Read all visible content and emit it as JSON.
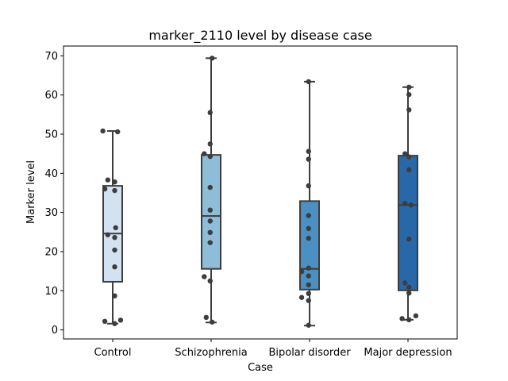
{
  "chart_data": {
    "type": "box",
    "title": "marker_2110 level by disease case",
    "xlabel": "Case",
    "ylabel": "Marker level",
    "ylim": [
      -2.3,
      72.5
    ],
    "yticks": [
      0,
      10,
      20,
      30,
      40,
      50,
      60,
      70
    ],
    "grid": false,
    "legend": "none",
    "categories": [
      "Control",
      "Schizophrenia",
      "Bipolar disorder",
      "Major depression"
    ],
    "colors": [
      "#d3e2f1",
      "#8ebdda",
      "#4a90c2",
      "#2868a8"
    ],
    "edge_color": "#3d3d3d",
    "point_color": "#3d3d3d",
    "boxes": [
      {
        "category": "Control",
        "min": 1.6,
        "q1": 12.3,
        "median": 24.6,
        "q3": 36.8,
        "max": 50.8
      },
      {
        "category": "Schizophrenia",
        "min": 1.9,
        "q1": 15.6,
        "median": 29.1,
        "q3": 44.7,
        "max": 69.4
      },
      {
        "category": "Bipolar disorder",
        "min": 1.1,
        "q1": 10.3,
        "median": 15.6,
        "q3": 32.9,
        "max": 63.4
      },
      {
        "category": "Major depression",
        "min": 2.6,
        "q1": 10.1,
        "median": 31.9,
        "q3": 44.5,
        "max": 62.0
      }
    ],
    "points": [
      [
        {
          "dx": -0.1,
          "y": 50.8
        },
        {
          "dx": 0.05,
          "y": 50.6
        },
        {
          "dx": -0.05,
          "y": 38.3
        },
        {
          "dx": -0.08,
          "y": 36.0
        },
        {
          "dx": 0.02,
          "y": 37.8
        },
        {
          "dx": 0.02,
          "y": 35.6
        },
        {
          "dx": 0.03,
          "y": 26.1
        },
        {
          "dx": -0.05,
          "y": 24.3
        },
        {
          "dx": 0.02,
          "y": 23.6
        },
        {
          "dx": 0.02,
          "y": 20.4
        },
        {
          "dx": 0.02,
          "y": 16.1
        },
        {
          "dx": 0.02,
          "y": 8.7
        },
        {
          "dx": -0.08,
          "y": 2.2
        },
        {
          "dx": 0.08,
          "y": 2.5
        },
        {
          "dx": 0.02,
          "y": 1.6
        }
      ],
      [
        {
          "dx": 0.01,
          "y": 69.4
        },
        {
          "dx": -0.01,
          "y": 55.5
        },
        {
          "dx": -0.01,
          "y": 47.5
        },
        {
          "dx": -0.07,
          "y": 45.0
        },
        {
          "dx": -0.01,
          "y": 44.3
        },
        {
          "dx": -0.01,
          "y": 36.4
        },
        {
          "dx": -0.01,
          "y": 30.6
        },
        {
          "dx": -0.01,
          "y": 27.8
        },
        {
          "dx": -0.01,
          "y": 24.9
        },
        {
          "dx": -0.01,
          "y": 22.3
        },
        {
          "dx": -0.07,
          "y": 13.6
        },
        {
          "dx": -0.01,
          "y": 12.5
        },
        {
          "dx": -0.05,
          "y": 3.2
        },
        {
          "dx": 0.01,
          "y": 2.0
        }
      ],
      [
        {
          "dx": -0.01,
          "y": 63.4
        },
        {
          "dx": -0.01,
          "y": 45.6
        },
        {
          "dx": -0.01,
          "y": 43.6
        },
        {
          "dx": -0.01,
          "y": 36.8
        },
        {
          "dx": -0.01,
          "y": 29.2
        },
        {
          "dx": -0.01,
          "y": 25.9
        },
        {
          "dx": -0.01,
          "y": 23.4
        },
        {
          "dx": -0.01,
          "y": 15.8
        },
        {
          "dx": -0.08,
          "y": 14.9
        },
        {
          "dx": -0.01,
          "y": 13.8
        },
        {
          "dx": -0.01,
          "y": 11.5
        },
        {
          "dx": -0.01,
          "y": 9.3
        },
        {
          "dx": -0.08,
          "y": 8.3
        },
        {
          "dx": -0.01,
          "y": 7.5
        },
        {
          "dx": -0.01,
          "y": 1.2
        }
      ],
      [
        {
          "dx": 0.01,
          "y": 62.0
        },
        {
          "dx": 0.01,
          "y": 60.1
        },
        {
          "dx": 0.01,
          "y": 56.2
        },
        {
          "dx": -0.03,
          "y": 45.0
        },
        {
          "dx": 0.01,
          "y": 44.2
        },
        {
          "dx": 0.01,
          "y": 40.9
        },
        {
          "dx": -0.03,
          "y": 32.3
        },
        {
          "dx": 0.03,
          "y": 31.9
        },
        {
          "dx": 0.01,
          "y": 23.2
        },
        {
          "dx": -0.03,
          "y": 12.0
        },
        {
          "dx": 0.01,
          "y": 10.9
        },
        {
          "dx": 0.01,
          "y": 9.4
        },
        {
          "dx": 0.08,
          "y": 3.6
        },
        {
          "dx": -0.06,
          "y": 2.9
        },
        {
          "dx": 0.01,
          "y": 2.6
        }
      ]
    ]
  }
}
